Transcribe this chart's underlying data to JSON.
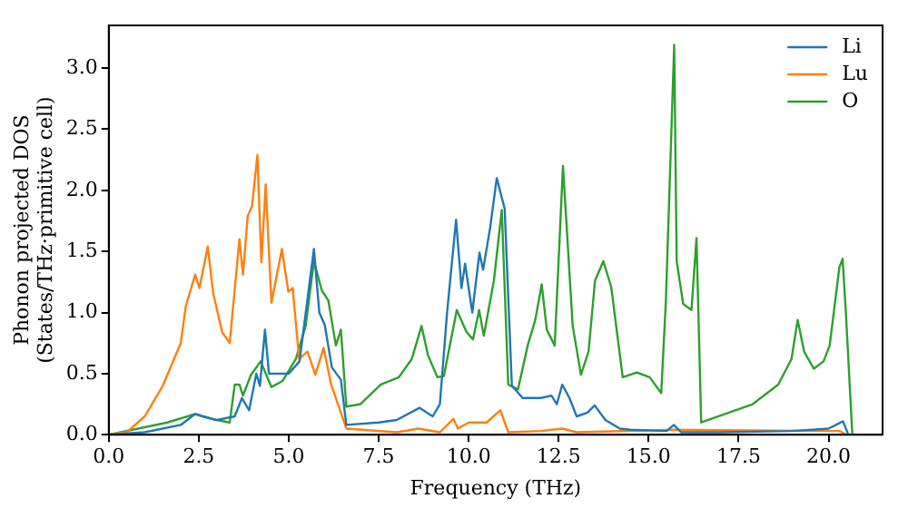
{
  "chart_data": {
    "type": "line",
    "xlabel": "Frequency (THz)",
    "ylabel": "Phonon projected DOS\n(States/THz·primitive cell)",
    "xlim": [
      0,
      21.5
    ],
    "ylim": [
      0,
      3.35
    ],
    "xticks": [
      {
        "value": 0,
        "label": "0.0"
      },
      2.5,
      {
        "value": 5,
        "label": "5.0"
      },
      7.5,
      {
        "value": 10,
        "label": "10.0"
      },
      12.5,
      {
        "value": 15,
        "label": "15.0"
      },
      17.5,
      {
        "value": 20,
        "label": "20.0"
      }
    ],
    "yticks": [
      {
        "value": 0,
        "label": "0.0"
      },
      0.5,
      {
        "value": 1,
        "label": "1.0"
      },
      1.5,
      {
        "value": 2,
        "label": "2.0"
      },
      2.5,
      {
        "value": 3,
        "label": "3.0"
      }
    ],
    "grid": false,
    "legend": "top right",
    "marker": "none",
    "line_style": "solid",
    "series": [
      {
        "name": "Li",
        "color": "#1f77b4",
        "x": [
          0,
          1,
          2,
          2.4,
          3,
          3.5,
          3.7,
          3.9,
          4.1,
          4.2,
          4.34,
          4.45,
          4.6,
          5,
          5.3,
          5.7,
          5.85,
          6,
          6.2,
          6.45,
          6.6,
          7.5,
          8,
          8.63,
          9,
          9.2,
          9.4,
          9.65,
          9.8,
          9.9,
          10.1,
          10.3,
          10.4,
          10.6,
          10.78,
          11,
          11.2,
          11.5,
          12,
          12.3,
          12.45,
          12.6,
          12.8,
          13,
          13.3,
          13.5,
          13.8,
          14.2,
          14.5,
          15.5,
          15.7,
          15.9,
          17,
          19,
          20,
          20.4,
          20.55
        ],
        "values": [
          0,
          0.02,
          0.08,
          0.17,
          0.12,
          0.15,
          0.3,
          0.2,
          0.5,
          0.4,
          0.86,
          0.5,
          0.5,
          0.5,
          0.6,
          1.52,
          1.0,
          0.9,
          0.55,
          0.45,
          0.08,
          0.1,
          0.12,
          0.22,
          0.15,
          0.25,
          1.0,
          1.76,
          1.2,
          1.4,
          1.0,
          1.49,
          1.35,
          1.7,
          2.1,
          1.85,
          0.4,
          0.3,
          0.3,
          0.32,
          0.25,
          0.41,
          0.3,
          0.15,
          0.18,
          0.24,
          0.12,
          0.05,
          0.04,
          0.03,
          0.08,
          0.02,
          0.02,
          0.03,
          0.05,
          0.11,
          0
        ]
      },
      {
        "name": "Lu",
        "color": "#ff7f0e",
        "x": [
          0,
          0.5,
          1,
          1.5,
          2,
          2.14,
          2.4,
          2.52,
          2.75,
          2.9,
          3.15,
          3.36,
          3.63,
          3.73,
          3.86,
          3.98,
          4.13,
          4.24,
          4.36,
          4.52,
          4.81,
          4.99,
          5.11,
          5.29,
          5.52,
          5.74,
          5.97,
          6.18,
          6.6,
          8,
          8.6,
          9.2,
          9.58,
          9.7,
          10,
          10.5,
          10.88,
          11.1,
          12,
          12.6,
          13,
          15.7,
          20.3,
          20.5
        ],
        "values": [
          0,
          0.02,
          0.15,
          0.4,
          0.75,
          1.05,
          1.31,
          1.2,
          1.54,
          1.16,
          0.84,
          0.75,
          1.6,
          1.31,
          1.79,
          1.87,
          2.29,
          1.41,
          2.05,
          1.08,
          1.52,
          1.17,
          1.2,
          0.62,
          0.68,
          0.49,
          0.71,
          0.41,
          0.05,
          0.02,
          0.05,
          0.02,
          0.13,
          0.05,
          0.1,
          0.1,
          0.2,
          0.02,
          0.03,
          0.05,
          0.02,
          0.04,
          0.03,
          0
        ]
      },
      {
        "name": "O",
        "color": "#2ca02c",
        "x": [
          0,
          1.63,
          2.4,
          2.6,
          3,
          3.36,
          3.5,
          3.63,
          3.73,
          3.95,
          4.22,
          4.52,
          4.83,
          5.2,
          5.47,
          5.7,
          5.92,
          6.1,
          6.31,
          6.45,
          6.6,
          6.99,
          7.56,
          8.06,
          8.42,
          8.69,
          8.87,
          9.13,
          9.31,
          9.67,
          9.94,
          10.12,
          10.29,
          10.42,
          10.7,
          10.92,
          11.1,
          11.37,
          11.64,
          11.85,
          12.03,
          12.17,
          12.39,
          12.62,
          12.89,
          13.12,
          13.33,
          13.51,
          13.74,
          13.96,
          14.28,
          14.67,
          15.03,
          15.35,
          15.48,
          15.71,
          15.78,
          15.96,
          16.19,
          16.33,
          16.46,
          17.89,
          18.6,
          18.97,
          19.14,
          19.32,
          19.59,
          19.86,
          20.03,
          20.3,
          20.39,
          20.48,
          20.66
        ],
        "values": [
          0,
          0.1,
          0.17,
          0.15,
          0.12,
          0.1,
          0.41,
          0.41,
          0.32,
          0.49,
          0.6,
          0.39,
          0.44,
          0.62,
          0.89,
          1.42,
          1.18,
          1.1,
          0.73,
          0.86,
          0.23,
          0.25,
          0.41,
          0.47,
          0.62,
          0.89,
          0.65,
          0.47,
          0.48,
          1.02,
          0.84,
          0.78,
          1.02,
          0.81,
          1.26,
          1.84,
          0.41,
          0.37,
          0.73,
          0.94,
          1.23,
          0.86,
          0.73,
          2.2,
          0.89,
          0.49,
          0.68,
          1.26,
          1.42,
          1.21,
          0.47,
          0.51,
          0.47,
          0.34,
          1.1,
          3.19,
          1.42,
          1.07,
          1.02,
          1.61,
          0.1,
          0.25,
          0.41,
          0.62,
          0.94,
          0.68,
          0.54,
          0.6,
          0.73,
          1.37,
          1.44,
          1,
          0
        ]
      }
    ]
  }
}
